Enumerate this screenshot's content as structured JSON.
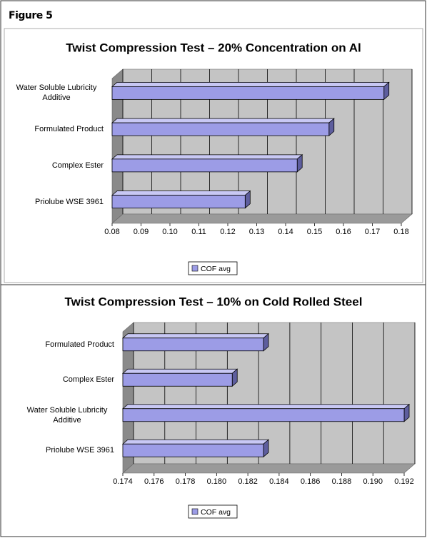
{
  "figure_label": "Figure 5",
  "chart_data": [
    {
      "type": "barh",
      "title": "Twist Compression Test – 20% Concentration on Al",
      "categories": [
        "Water Soluble Lubricity Additive",
        "Formulated Product",
        "Complex Ester",
        "Priolube WSE 3961"
      ],
      "series": [
        {
          "name": "COF avg",
          "color": "#9c9ce6",
          "values": [
            0.174,
            0.155,
            0.144,
            0.126
          ]
        }
      ],
      "xlim": [
        0.08,
        0.18
      ],
      "xticks": [
        0.08,
        0.09,
        {
          "value": 0.1,
          "label": "0.10"
        },
        0.11,
        0.12,
        0.13,
        0.14,
        0.15,
        0.16,
        0.17,
        0.18
      ],
      "grid": true,
      "legend": "bottom"
    },
    {
      "type": "barh",
      "title": "Twist Compression Test – 10% on Cold Rolled Steel",
      "categories": [
        "Formulated Product",
        "Complex Ester",
        "Water Soluble Lubricity Additive",
        "Priolube WSE 3961"
      ],
      "series": [
        {
          "name": "COF avg",
          "color": "#9c9ce6",
          "values": [
            0.183,
            0.181,
            0.192,
            0.183
          ]
        }
      ],
      "xlim": [
        0.174,
        0.192
      ],
      "xticks": [
        0.174,
        0.176,
        0.178,
        {
          "value": 0.18,
          "label": "0.180"
        },
        0.182,
        0.184,
        0.186,
        0.188,
        {
          "value": 0.19,
          "label": "0.190"
        },
        0.192
      ],
      "grid": true,
      "legend": "bottom"
    }
  ]
}
